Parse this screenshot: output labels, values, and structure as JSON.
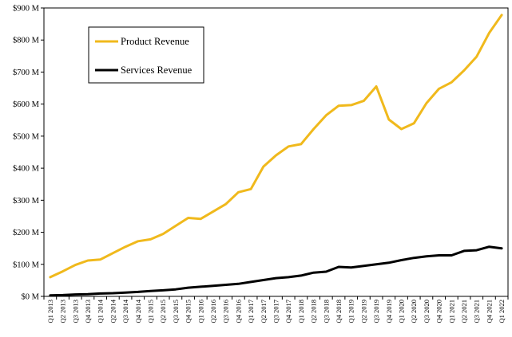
{
  "chart_data": {
    "type": "line",
    "title": "",
    "xlabel": "",
    "ylabel": "",
    "ylim": [
      0,
      900
    ],
    "y_unit": "M",
    "y_ticks": [
      "$0 M",
      "$100 M",
      "$200 M",
      "$300 M",
      "$400 M",
      "$500 M",
      "$600 M",
      "$700 M",
      "$800 M",
      "$900 M"
    ],
    "grid": false,
    "legend_position": "top-left",
    "categories": [
      "Q1 2013",
      "Q2 2013",
      "Q3 2013",
      "Q4 2013",
      "Q1 2014",
      "Q2 2014",
      "Q3 2014",
      "Q4 2014",
      "Q1 2015",
      "Q2 2015",
      "Q3 2015",
      "Q4 2015",
      "Q1 2016",
      "Q2 2016",
      "Q3 2016",
      "Q4 2016",
      "Q1 2017",
      "Q2 2017",
      "Q3 2017",
      "Q4 2017",
      "Q1 2018",
      "Q2 2018",
      "Q3 2018",
      "Q4 2018",
      "Q1 2019",
      "Q2 2019",
      "Q3 2019",
      "Q4 2019",
      "Q1 2020",
      "Q2 2020",
      "Q3 2020",
      "Q4 2020",
      "Q1 2021",
      "Q2 2021",
      "Q3 2021",
      "Q4 2021",
      "Q1 2022"
    ],
    "series": [
      {
        "name": "Product Revenue",
        "color": "#F0B91C",
        "values": [
          60,
          78,
          98,
          112,
          115,
          135,
          155,
          172,
          178,
          195,
          220,
          245,
          242,
          265,
          288,
          325,
          335,
          405,
          440,
          468,
          475,
          522,
          565,
          595,
          597,
          610,
          655,
          552,
          522,
          540,
          603,
          648,
          668,
          705,
          748,
          822,
          878
        ]
      },
      {
        "name": "Services Revenue",
        "color": "#000000",
        "values": [
          3,
          4,
          6,
          7,
          9,
          10,
          12,
          14,
          17,
          19,
          22,
          27,
          30,
          33,
          36,
          39,
          45,
          51,
          57,
          60,
          65,
          74,
          77,
          92,
          90,
          95,
          100,
          105,
          113,
          120,
          125,
          128,
          128,
          142,
          144,
          155,
          150
        ]
      }
    ]
  }
}
